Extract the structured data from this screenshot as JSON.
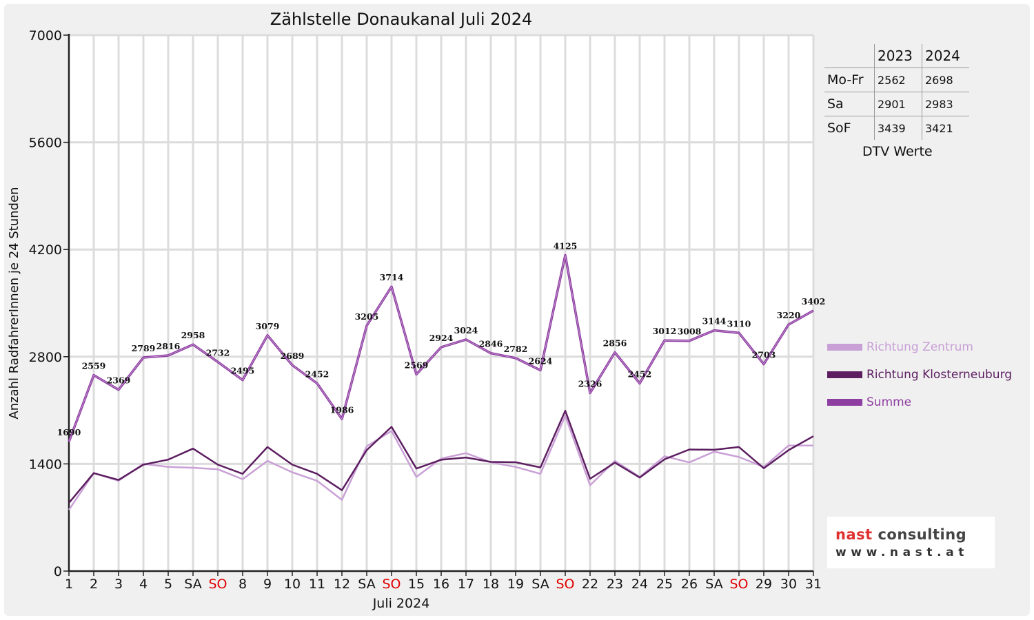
{
  "chart_data": {
    "type": "line",
    "title": "Zählstelle Donaukanal Juli 2024",
    "xlabel": "Juli 2024",
    "ylabel": "Anzahl RadfahrerInnen je 24 Stunden",
    "ylim": [
      0,
      7000
    ],
    "yticks": [
      0,
      1400,
      2800,
      4200,
      5600,
      7000
    ],
    "grid": true,
    "x_tick_labels": [
      "1",
      "2",
      "3",
      "4",
      "5",
      "SA",
      "SO",
      "8",
      "9",
      "10",
      "11",
      "12",
      "SA",
      "SO",
      "15",
      "16",
      "17",
      "18",
      "19",
      "SA",
      "SO",
      "22",
      "23",
      "24",
      "25",
      "26",
      "SA",
      "SO",
      "29",
      "30",
      "31"
    ],
    "sunday_color": "#e00000",
    "series": [
      {
        "name": "Richtung Zentrum",
        "color": "#c9a0d6",
        "values": [
          800,
          1280,
          1180,
          1400,
          1360,
          1350,
          1330,
          1200,
          1440,
          1290,
          1180,
          930,
          1630,
          1830,
          1230,
          1470,
          1540,
          1420,
          1360,
          1270,
          2030,
          1120,
          1440,
          1230,
          1500,
          1420,
          1560,
          1490,
          1360,
          1640,
          1640
        ]
      },
      {
        "name": "Richtung Klosterneuburg",
        "color": "#5c1e60",
        "values": [
          890,
          1279,
          1190,
          1390,
          1456,
          1600,
          1390,
          1270,
          1620,
          1390,
          1270,
          1056,
          1580,
          1884,
          1339,
          1454,
          1484,
          1426,
          1422,
          1354,
          2095,
          1206,
          1416,
          1222,
          1460,
          1588,
          1584,
          1620,
          1343,
          1580,
          1762
        ]
      },
      {
        "name": "Summe",
        "color": "#8d3ea0",
        "values": [
          1690,
          2559,
          2369,
          2789,
          2816,
          2958,
          2732,
          2495,
          3079,
          2689,
          2452,
          1986,
          3205,
          3714,
          2569,
          2924,
          3024,
          2846,
          2782,
          2624,
          4125,
          2326,
          2856,
          2452,
          3012,
          3008,
          3144,
          3110,
          2703,
          3220,
          3402
        ]
      }
    ],
    "data_labels": [
      "1690",
      "2559",
      "2369",
      "2789",
      "2816",
      "2958",
      "2732",
      "2495",
      "3079",
      "2689",
      "2452",
      "1986",
      "3205",
      "3714",
      "2569",
      "2924",
      "3024",
      "2846",
      "2782",
      "2624",
      "4125",
      "2326",
      "2856",
      "2452",
      "3012",
      "3008",
      "3144",
      "3110",
      "2703",
      "3220",
      "3402"
    ],
    "legend_position": "right"
  },
  "dtv_table": {
    "col_headers": [
      "2023",
      "2024"
    ],
    "rows": [
      {
        "label": "Mo-Fr",
        "v2023": "2562",
        "v2024": "2698"
      },
      {
        "label": "Sa",
        "v2023": "2901",
        "v2024": "2983"
      },
      {
        "label": "SoF",
        "v2023": "3439",
        "v2024": "3421"
      }
    ],
    "caption": "DTV Werte"
  },
  "logo": {
    "part_red": "nast",
    "part_gray": " consulting",
    "url": "www.nast.at"
  }
}
